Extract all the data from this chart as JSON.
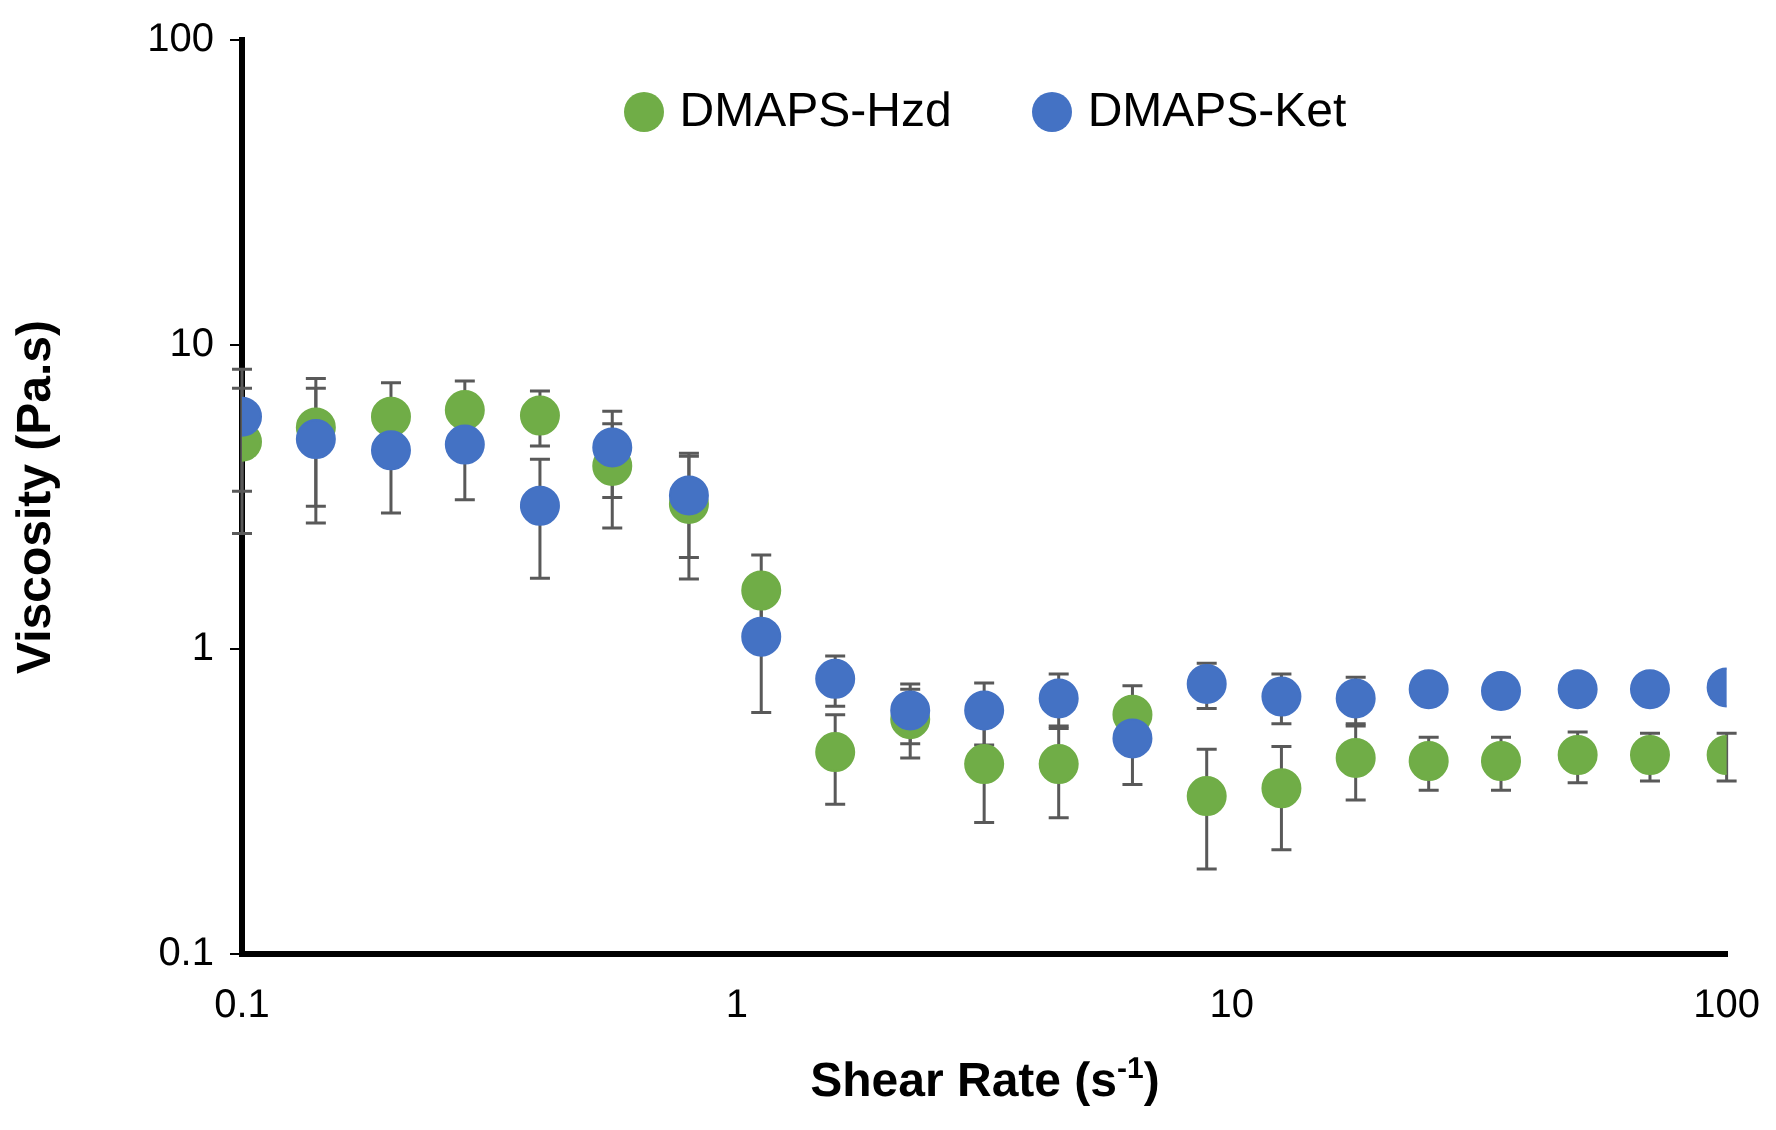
{
  "chart_data": {
    "type": "scatter",
    "xlabel": "Shear Rate (s$^{-1}$)",
    "ylabel": "Viscosity (Pa.s)",
    "log": "xy",
    "xlim": [
      0.1,
      100
    ],
    "xticks": [
      0.1,
      1,
      10,
      100
    ],
    "ylim": [
      0.1,
      100
    ],
    "yticks": [
      0.1,
      1,
      10,
      100
    ],
    "grid": false,
    "legend": "top",
    "marker": "circle",
    "x": [
      0.1,
      0.141,
      0.2,
      0.282,
      0.4,
      0.56,
      0.8,
      1.12,
      1.58,
      2.24,
      3.16,
      4.47,
      6.3,
      8.9,
      12.6,
      17.8,
      25,
      35,
      50,
      70,
      100
    ],
    "series": [
      {
        "name": "DMAPS-Hzd",
        "color": "#70ad47",
        "values": [
          4.8,
          5.35,
          5.8,
          6.1,
          5.85,
          4.0,
          3.0,
          1.56,
          0.46,
          0.59,
          0.42,
          0.42,
          0.61,
          0.33,
          0.35,
          0.44,
          0.43,
          0.43,
          0.45,
          0.45,
          0.45
        ],
        "errors": [
          2.4,
          2.4,
          1.7,
          1.5,
          1.2,
          1.5,
          1.3,
          0.48,
          0.15,
          0.15,
          0.15,
          0.14,
          0.15,
          0.14,
          0.13,
          0.12,
          0.085,
          0.085,
          0.085,
          0.08,
          0.08
        ]
      },
      {
        "name": "DMAPS-Ket",
        "color": "#4472c4",
        "values": [
          5.8,
          4.9,
          4.5,
          4.7,
          2.96,
          4.6,
          3.2,
          1.1,
          0.8,
          0.63,
          0.63,
          0.69,
          0.51,
          0.77,
          0.7,
          0.69,
          0.74,
          0.73,
          0.74,
          0.74,
          0.75
        ],
        "errors": [
          2.5,
          2.3,
          1.7,
          1.6,
          1.25,
          1.45,
          1.2,
          0.48,
          0.15,
          0.14,
          0.145,
          0.14,
          0.15,
          0.13,
          0.13,
          0.12,
          null,
          null,
          null,
          null,
          null
        ]
      }
    ]
  }
}
